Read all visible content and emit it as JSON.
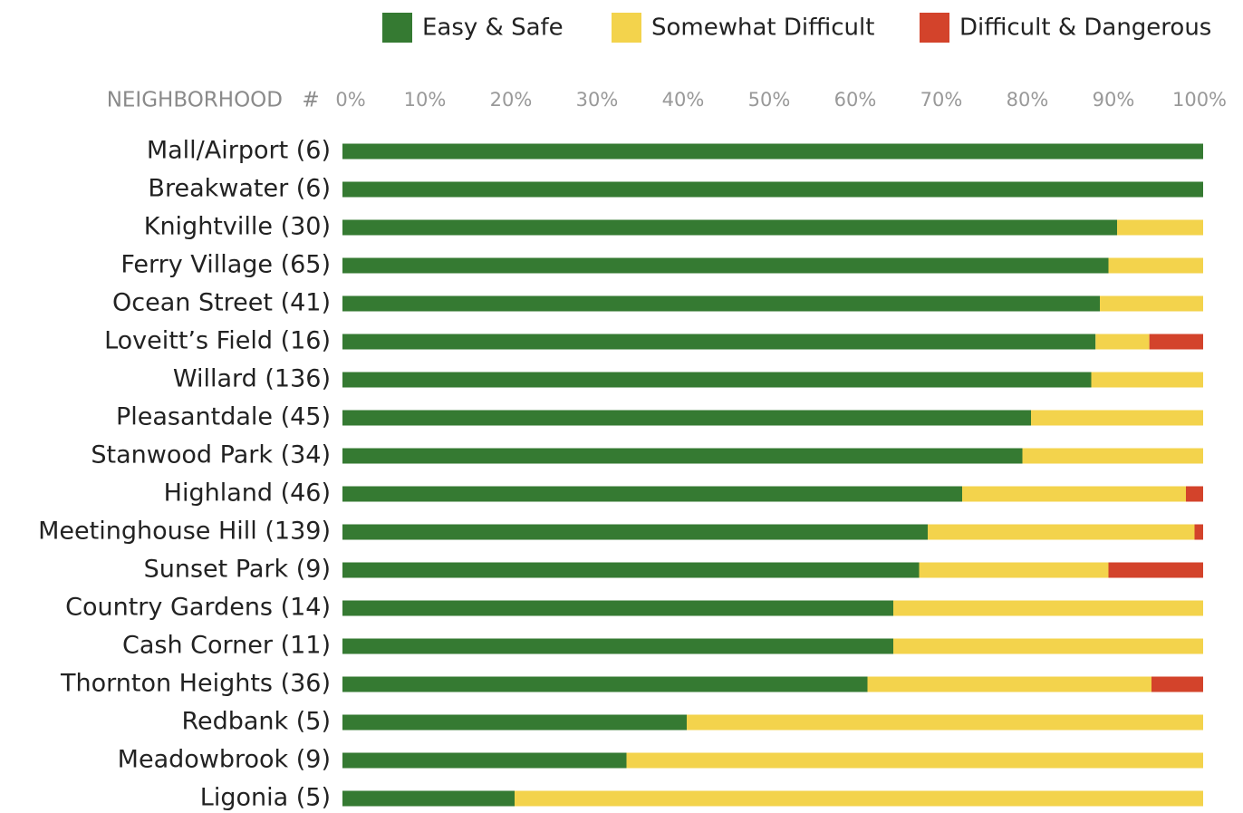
{
  "chart_data": {
    "type": "stacked_bar_horizontal",
    "y_header": "NEIGHBORHOOD",
    "count_header": "#",
    "categories": [
      "Mall/Airport (6)",
      "Breakwater (6)",
      "Knightville (30)",
      "Ferry Village (65)",
      "Ocean Street (41)",
      "Loveitt’s Field (16)",
      "Willard (136)",
      "Pleasantdale (45)",
      "Stanwood Park (34)",
      "Highland (46)",
      "Meetinghouse Hill (139)",
      "Sunset Park (9)",
      "Country Gardens (14)",
      "Cash Corner (11)",
      "Thornton Heights (36)",
      "Redbank (5)",
      "Meadowbrook (9)",
      "Ligonia (5)"
    ],
    "series": [
      {
        "name": "Easy & Safe",
        "color": "#357a32",
        "values": [
          100,
          100,
          90,
          89,
          88,
          87.5,
          87,
          80,
          79,
          72,
          68,
          67,
          64,
          64,
          61,
          40,
          33,
          20
        ]
      },
      {
        "name": "Somewhat Difficult",
        "color": "#f3d34c",
        "values": [
          0,
          0,
          10,
          11,
          12,
          6.25,
          13,
          20,
          21,
          26,
          31,
          22,
          36,
          36,
          33,
          60,
          67,
          80
        ]
      },
      {
        "name": "Difficult & Dangerous",
        "color": "#d3432b",
        "values": [
          0,
          0,
          0,
          0,
          0,
          6.25,
          0,
          0,
          0,
          2,
          1,
          11,
          0,
          0,
          6,
          0,
          0,
          0
        ]
      }
    ],
    "xlim": [
      0,
      100
    ],
    "xticks": [
      {
        "value": 0,
        "label": "0%"
      },
      {
        "value": 10,
        "label": "10%"
      },
      {
        "value": 20,
        "label": "20%"
      },
      {
        "value": 30,
        "label": "30%"
      },
      {
        "value": 40,
        "label": "40%"
      },
      {
        "value": 50,
        "label": "50%"
      },
      {
        "value": 60,
        "label": "60%"
      },
      {
        "value": 70,
        "label": "70%"
      },
      {
        "value": 80,
        "label": "80%"
      },
      {
        "value": 90,
        "label": "90%"
      },
      {
        "value": 100,
        "label": "100%"
      }
    ],
    "legend": "top-right"
  }
}
